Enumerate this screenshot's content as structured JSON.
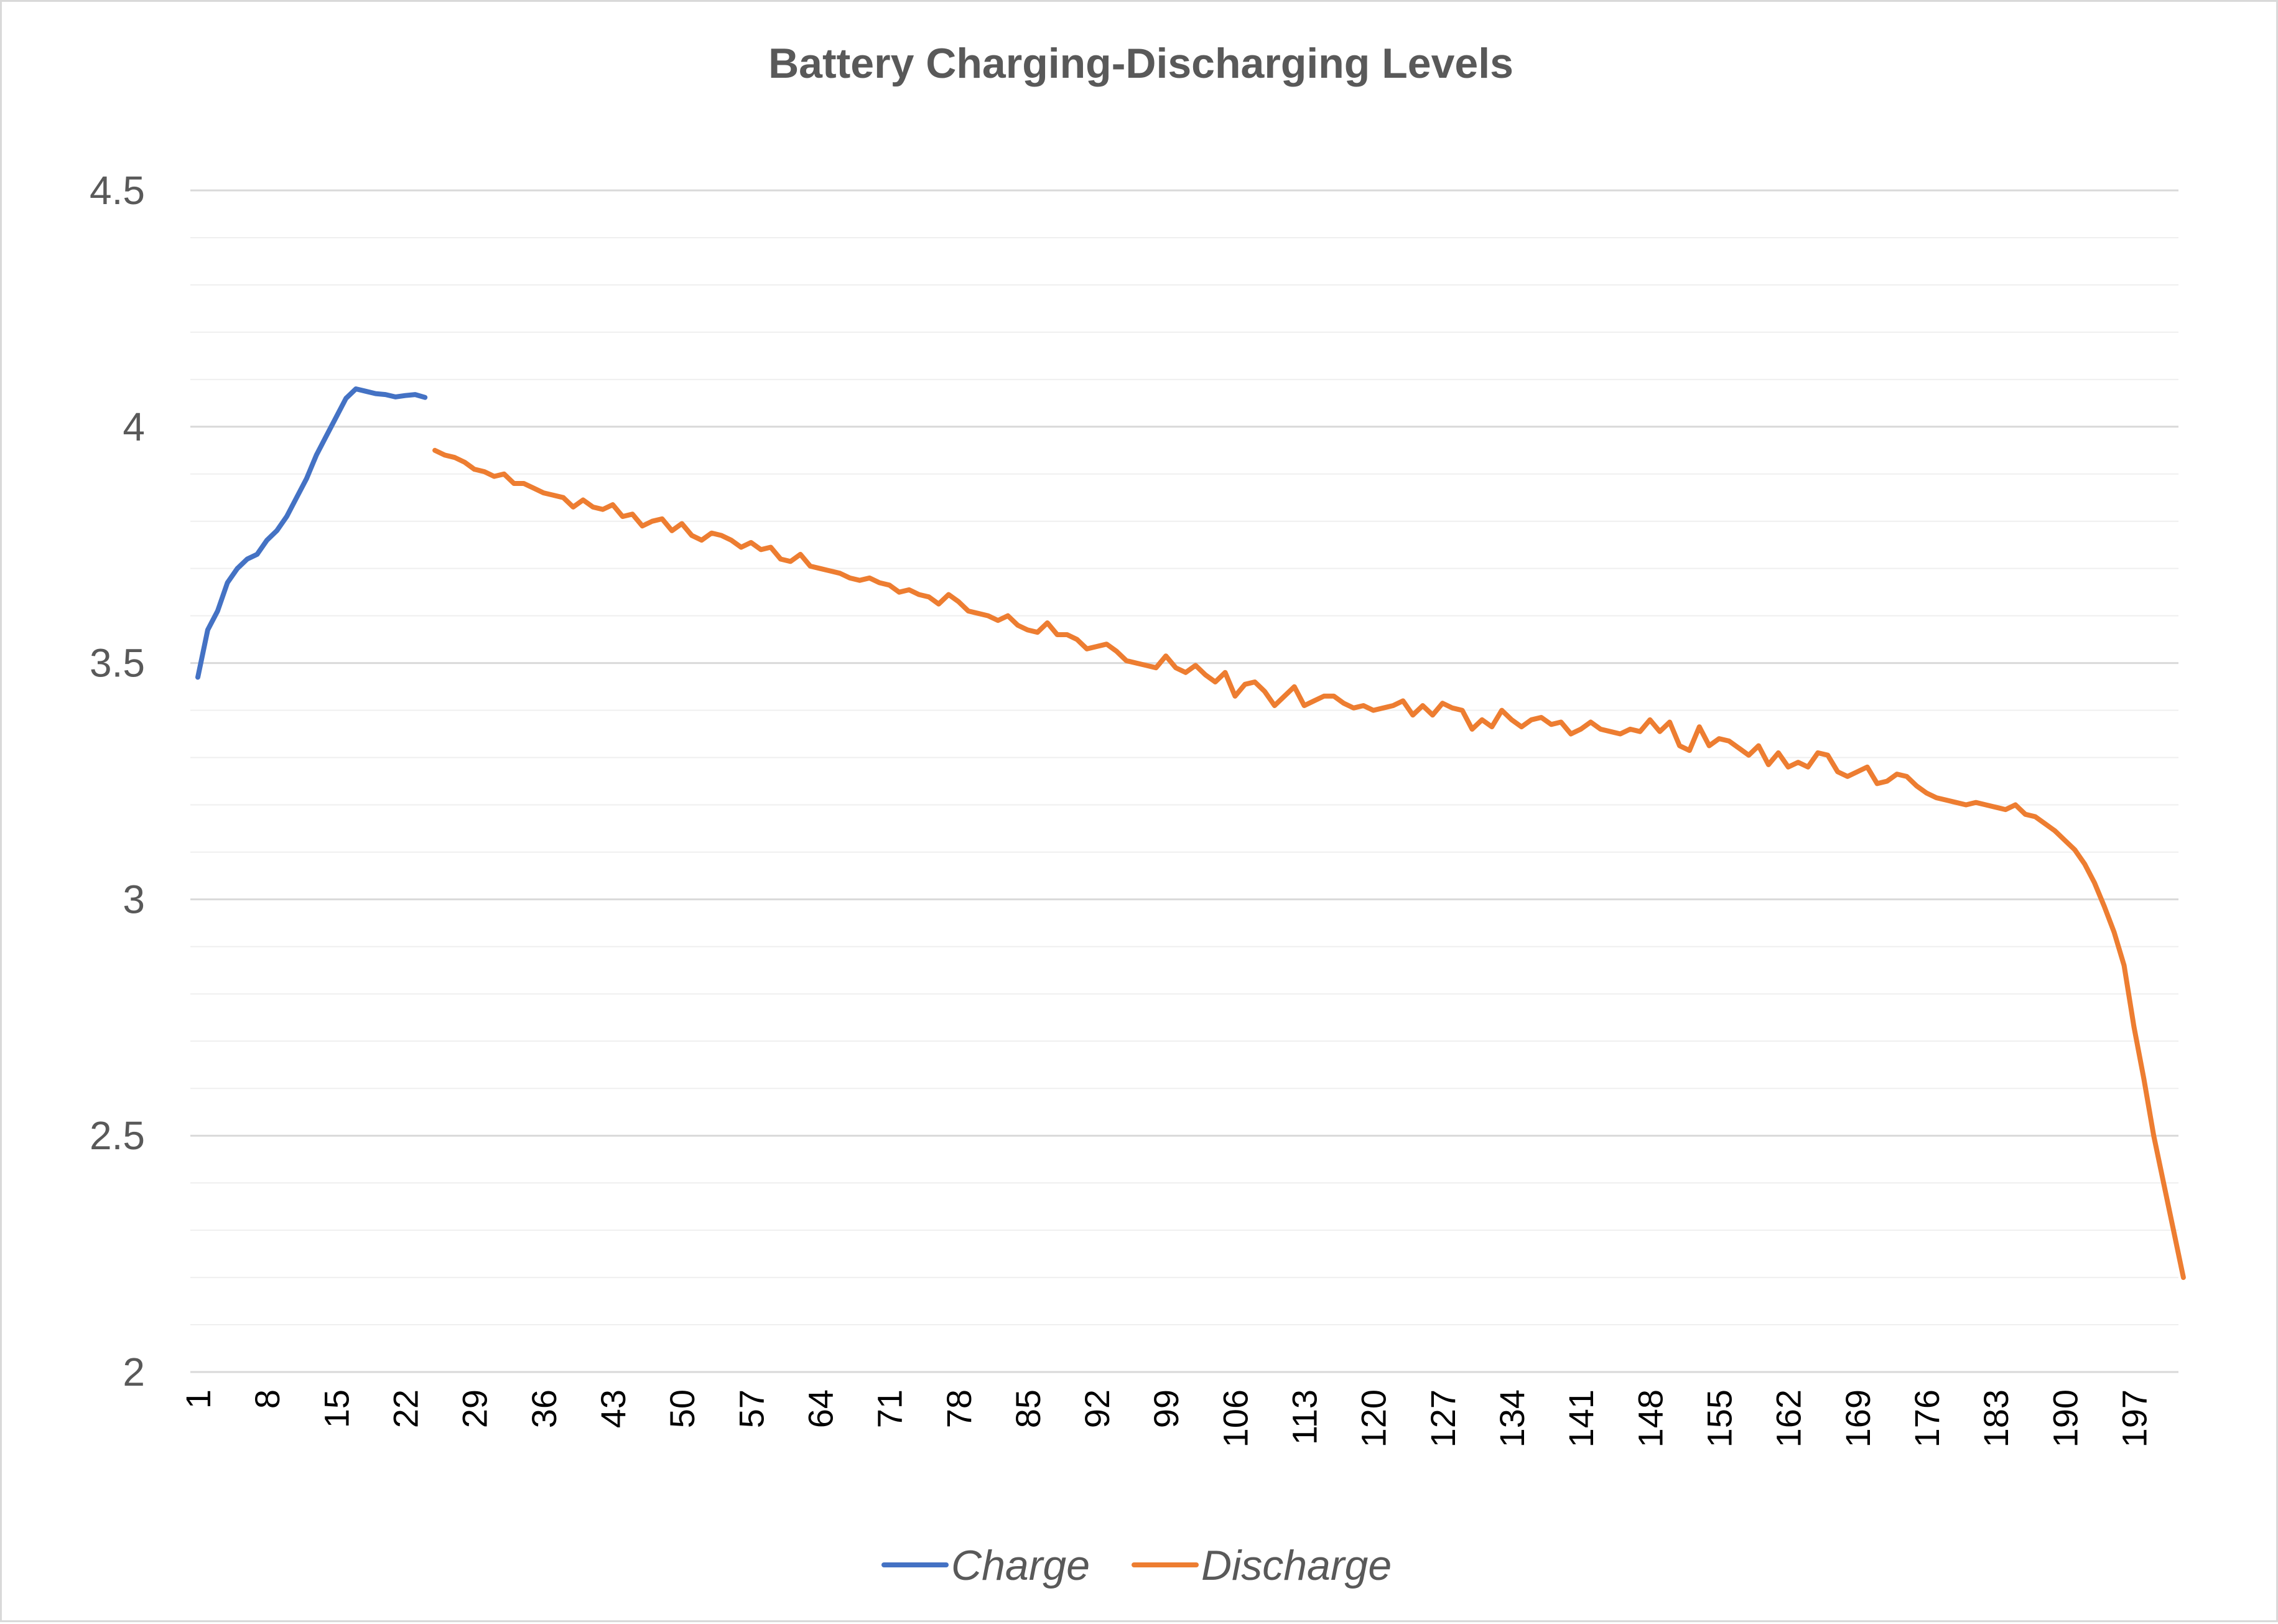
{
  "chart_data": {
    "type": "line",
    "title": "Battery Charging-Discharging Levels",
    "xlabel": "",
    "ylabel": "",
    "ylim": [
      2,
      4.5
    ],
    "ytick_major": [
      2,
      2.5,
      3,
      3.5,
      4,
      4.5
    ],
    "ytick_labels": [
      "2",
      "2.5",
      "3",
      "3.5",
      "4",
      "4.5"
    ],
    "y_minor_step": 0.1,
    "x_count": 201,
    "xtick_labels": [
      "1",
      "8",
      "15",
      "22",
      "29",
      "36",
      "43",
      "50",
      "57",
      "64",
      "71",
      "78",
      "85",
      "92",
      "99",
      "106",
      "113",
      "120",
      "127",
      "134",
      "141",
      "148",
      "155",
      "162",
      "169",
      "176",
      "183",
      "190",
      "197"
    ],
    "grid": true,
    "legend_position": "bottom",
    "series": [
      {
        "name": "Charge",
        "color": "#4472c4",
        "x_start": 1,
        "values": [
          3.47,
          3.57,
          3.61,
          3.67,
          3.7,
          3.72,
          3.73,
          3.76,
          3.78,
          3.81,
          3.85,
          3.89,
          3.94,
          3.98,
          4.02,
          4.06,
          4.08,
          4.075,
          4.07,
          4.068,
          4.063,
          4.066,
          4.068,
          4.062
        ]
      },
      {
        "name": "Discharge",
        "color": "#ed7d31",
        "x_start": 25,
        "values": [
          3.95,
          3.94,
          3.935,
          3.925,
          3.91,
          3.905,
          3.895,
          3.9,
          3.88,
          3.88,
          3.87,
          3.86,
          3.855,
          3.85,
          3.83,
          3.845,
          3.83,
          3.825,
          3.835,
          3.81,
          3.815,
          3.79,
          3.8,
          3.805,
          3.78,
          3.795,
          3.77,
          3.76,
          3.775,
          3.77,
          3.76,
          3.745,
          3.755,
          3.74,
          3.745,
          3.72,
          3.715,
          3.73,
          3.705,
          3.7,
          3.695,
          3.69,
          3.68,
          3.675,
          3.68,
          3.67,
          3.665,
          3.65,
          3.655,
          3.645,
          3.64,
          3.625,
          3.645,
          3.63,
          3.61,
          3.605,
          3.6,
          3.59,
          3.6,
          3.58,
          3.57,
          3.565,
          3.585,
          3.56,
          3.56,
          3.55,
          3.53,
          3.535,
          3.54,
          3.525,
          3.505,
          3.5,
          3.495,
          3.49,
          3.515,
          3.49,
          3.48,
          3.495,
          3.475,
          3.46,
          3.48,
          3.43,
          3.455,
          3.46,
          3.44,
          3.41,
          3.43,
          3.45,
          3.41,
          3.42,
          3.43,
          3.43,
          3.415,
          3.405,
          3.41,
          3.4,
          3.405,
          3.41,
          3.42,
          3.39,
          3.41,
          3.39,
          3.415,
          3.405,
          3.4,
          3.36,
          3.38,
          3.365,
          3.4,
          3.38,
          3.365,
          3.38,
          3.385,
          3.37,
          3.375,
          3.35,
          3.36,
          3.375,
          3.36,
          3.355,
          3.35,
          3.36,
          3.355,
          3.38,
          3.355,
          3.375,
          3.325,
          3.315,
          3.365,
          3.325,
          3.34,
          3.335,
          3.32,
          3.305,
          3.325,
          3.285,
          3.31,
          3.28,
          3.29,
          3.28,
          3.31,
          3.305,
          3.27,
          3.26,
          3.27,
          3.28,
          3.245,
          3.25,
          3.265,
          3.26,
          3.24,
          3.225,
          3.215,
          3.21,
          3.205,
          3.2,
          3.205,
          3.2,
          3.195,
          3.19,
          3.2,
          3.18,
          3.175,
          3.16,
          3.145,
          3.125,
          3.105,
          3.075,
          3.035,
          2.985,
          2.93,
          2.86,
          2.73,
          2.62,
          2.5,
          2.4,
          2.3,
          2.2
        ]
      }
    ]
  }
}
